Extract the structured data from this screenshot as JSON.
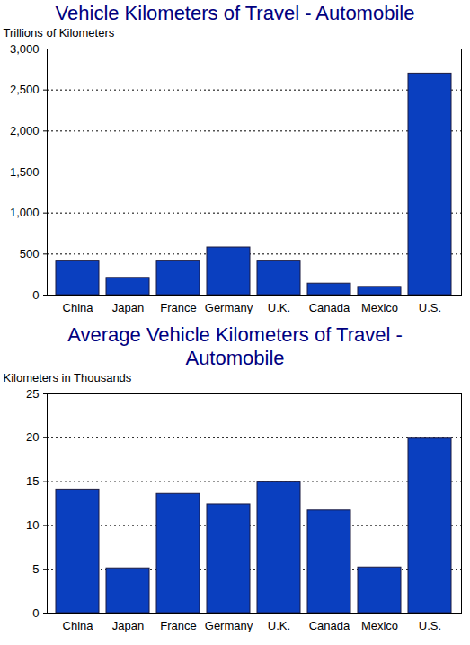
{
  "chart_data": [
    {
      "type": "bar",
      "title": "Vehicle Kilometers of Travel - Automobile",
      "y_label": "Trillions of Kilometers",
      "categories": [
        "China",
        "Japan",
        "France",
        "Germany",
        "U.K.",
        "Canada",
        "Mexico",
        "U.S."
      ],
      "values": [
        420,
        210,
        420,
        580,
        420,
        140,
        100,
        2700
      ],
      "color": "#0a3fbf",
      "ylim": [
        0,
        3000
      ],
      "yticks": [
        0,
        500,
        1000,
        1500,
        2000,
        2500,
        3000
      ],
      "grid": true
    },
    {
      "type": "bar",
      "title": "Average Vehicle Kilometers of Travel - Automobile",
      "y_label": "Kilometers in Thousands",
      "categories": [
        "China",
        "Japan",
        "France",
        "Germany",
        "U.K.",
        "Canada",
        "Mexico",
        "U.S."
      ],
      "values": [
        14.1,
        5.1,
        13.6,
        12.4,
        15.0,
        11.7,
        5.2,
        19.9
      ],
      "color": "#0a3fbf",
      "ylim": [
        0,
        25
      ],
      "yticks": [
        0,
        5,
        10,
        15,
        20,
        25
      ],
      "grid": true
    }
  ]
}
